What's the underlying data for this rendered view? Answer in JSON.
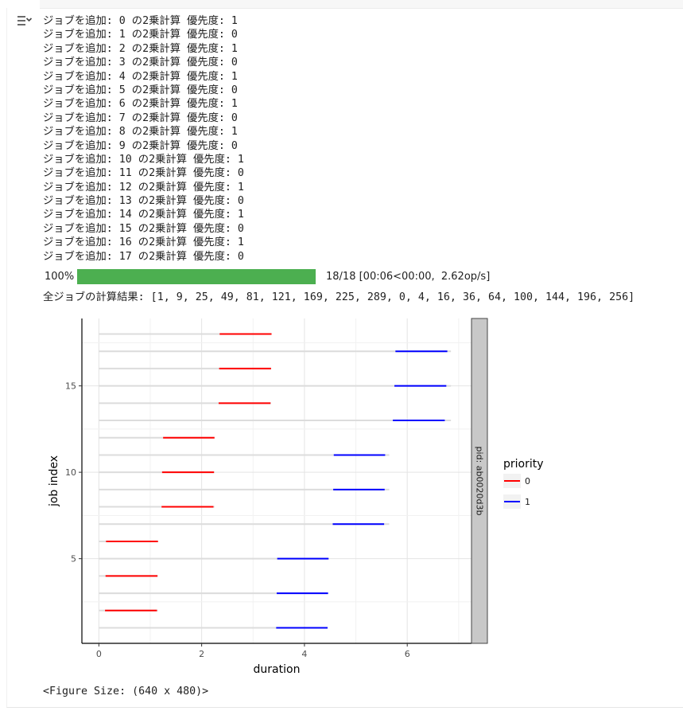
{
  "log_lines": [
    "ジョブを追加: 0 の2乗計算 優先度: 1",
    "ジョブを追加: 1 の2乗計算 優先度: 0",
    "ジョブを追加: 2 の2乗計算 優先度: 1",
    "ジョブを追加: 3 の2乗計算 優先度: 0",
    "ジョブを追加: 4 の2乗計算 優先度: 1",
    "ジョブを追加: 5 の2乗計算 優先度: 0",
    "ジョブを追加: 6 の2乗計算 優先度: 1",
    "ジョブを追加: 7 の2乗計算 優先度: 0",
    "ジョブを追加: 8 の2乗計算 優先度: 1",
    "ジョブを追加: 9 の2乗計算 優先度: 0",
    "ジョブを追加: 10 の2乗計算 優先度: 1",
    "ジョブを追加: 11 の2乗計算 優先度: 0",
    "ジョブを追加: 12 の2乗計算 優先度: 1",
    "ジョブを追加: 13 の2乗計算 優先度: 0",
    "ジョブを追加: 14 の2乗計算 優先度: 1",
    "ジョブを追加: 15 の2乗計算 優先度: 0",
    "ジョブを追加: 16 の2乗計算 優先度: 1",
    "ジョブを追加: 17 の2乗計算 優先度: 0"
  ],
  "progress": {
    "percent_label": "100%",
    "fraction": 1.0,
    "stats": "18/18 [00:06<00:00,  2.62op/s]"
  },
  "result_line": "全ジョブの計算結果: [1, 9, 25, 49, 81, 121, 169, 225, 289, 0, 4, 16, 36, 64, 100, 144, 196, 256]",
  "figure_size_line": "<Figure Size: (640 x 480)>",
  "colors": {
    "priority_0": "#ff0000",
    "priority_1": "#0000ff",
    "progress_fill": "#4caf50",
    "facet_strip": "#c8c8c8"
  },
  "chart_data": {
    "type": "line",
    "xlabel": "duration",
    "ylabel": "job index",
    "xlim": [
      -0.33,
      7.25
    ],
    "ylim": [
      0.1,
      18.9
    ],
    "x_ticks": [
      0,
      2,
      4,
      6
    ],
    "y_ticks": [
      5,
      10,
      15
    ],
    "facet_label": "pid: ab0020d3b",
    "legend": {
      "title": "priority",
      "placement": "right",
      "entries": [
        {
          "label": "0",
          "color": "#ff0000"
        },
        {
          "label": "1",
          "color": "#0000ff"
        }
      ]
    },
    "grid": true,
    "background_segments": [
      {
        "y": 1,
        "x0": 0,
        "x1": 4.45
      },
      {
        "y": 2,
        "x0": 0,
        "x1": 1.15
      },
      {
        "y": 3,
        "x0": 0,
        "x1": 4.45
      },
      {
        "y": 4,
        "x0": 0,
        "x1": 1.15
      },
      {
        "y": 5,
        "x0": 0,
        "x1": 4.45
      },
      {
        "y": 6,
        "x0": 0,
        "x1": 1.15
      },
      {
        "y": 7,
        "x0": 0,
        "x1": 5.65
      },
      {
        "y": 8,
        "x0": 0,
        "x1": 2.25
      },
      {
        "y": 9,
        "x0": 0,
        "x1": 5.65
      },
      {
        "y": 10,
        "x0": 0,
        "x1": 2.25
      },
      {
        "y": 11,
        "x0": 0,
        "x1": 5.65
      },
      {
        "y": 12,
        "x0": 0,
        "x1": 2.25
      },
      {
        "y": 13,
        "x0": 0,
        "x1": 6.85
      },
      {
        "y": 14,
        "x0": 0,
        "x1": 3.35
      },
      {
        "y": 15,
        "x0": 0,
        "x1": 6.85
      },
      {
        "y": 16,
        "x0": 0,
        "x1": 3.35
      },
      {
        "y": 17,
        "x0": 0,
        "x1": 6.85
      },
      {
        "y": 18,
        "x0": 0,
        "x1": 3.35
      }
    ],
    "segments": [
      {
        "y": 1,
        "x0": 3.45,
        "x1": 4.45,
        "priority": 1
      },
      {
        "y": 2,
        "x0": 0.12,
        "x1": 1.13,
        "priority": 0
      },
      {
        "y": 3,
        "x0": 3.46,
        "x1": 4.46,
        "priority": 1
      },
      {
        "y": 4,
        "x0": 0.13,
        "x1": 1.14,
        "priority": 0
      },
      {
        "y": 5,
        "x0": 3.47,
        "x1": 4.47,
        "priority": 1
      },
      {
        "y": 6,
        "x0": 0.14,
        "x1": 1.15,
        "priority": 0
      },
      {
        "y": 7,
        "x0": 4.55,
        "x1": 5.55,
        "priority": 1
      },
      {
        "y": 8,
        "x0": 1.22,
        "x1": 2.23,
        "priority": 0
      },
      {
        "y": 9,
        "x0": 4.56,
        "x1": 5.56,
        "priority": 1
      },
      {
        "y": 10,
        "x0": 1.23,
        "x1": 2.24,
        "priority": 0
      },
      {
        "y": 11,
        "x0": 4.57,
        "x1": 5.57,
        "priority": 1
      },
      {
        "y": 12,
        "x0": 1.25,
        "x1": 2.25,
        "priority": 0
      },
      {
        "y": 13,
        "x0": 5.72,
        "x1": 6.73,
        "priority": 1
      },
      {
        "y": 14,
        "x0": 2.33,
        "x1": 3.34,
        "priority": 0
      },
      {
        "y": 15,
        "x0": 5.75,
        "x1": 6.76,
        "priority": 1
      },
      {
        "y": 16,
        "x0": 2.34,
        "x1": 3.35,
        "priority": 0
      },
      {
        "y": 17,
        "x0": 5.77,
        "x1": 6.78,
        "priority": 1
      },
      {
        "y": 18,
        "x0": 2.35,
        "x1": 3.36,
        "priority": 0
      }
    ]
  }
}
